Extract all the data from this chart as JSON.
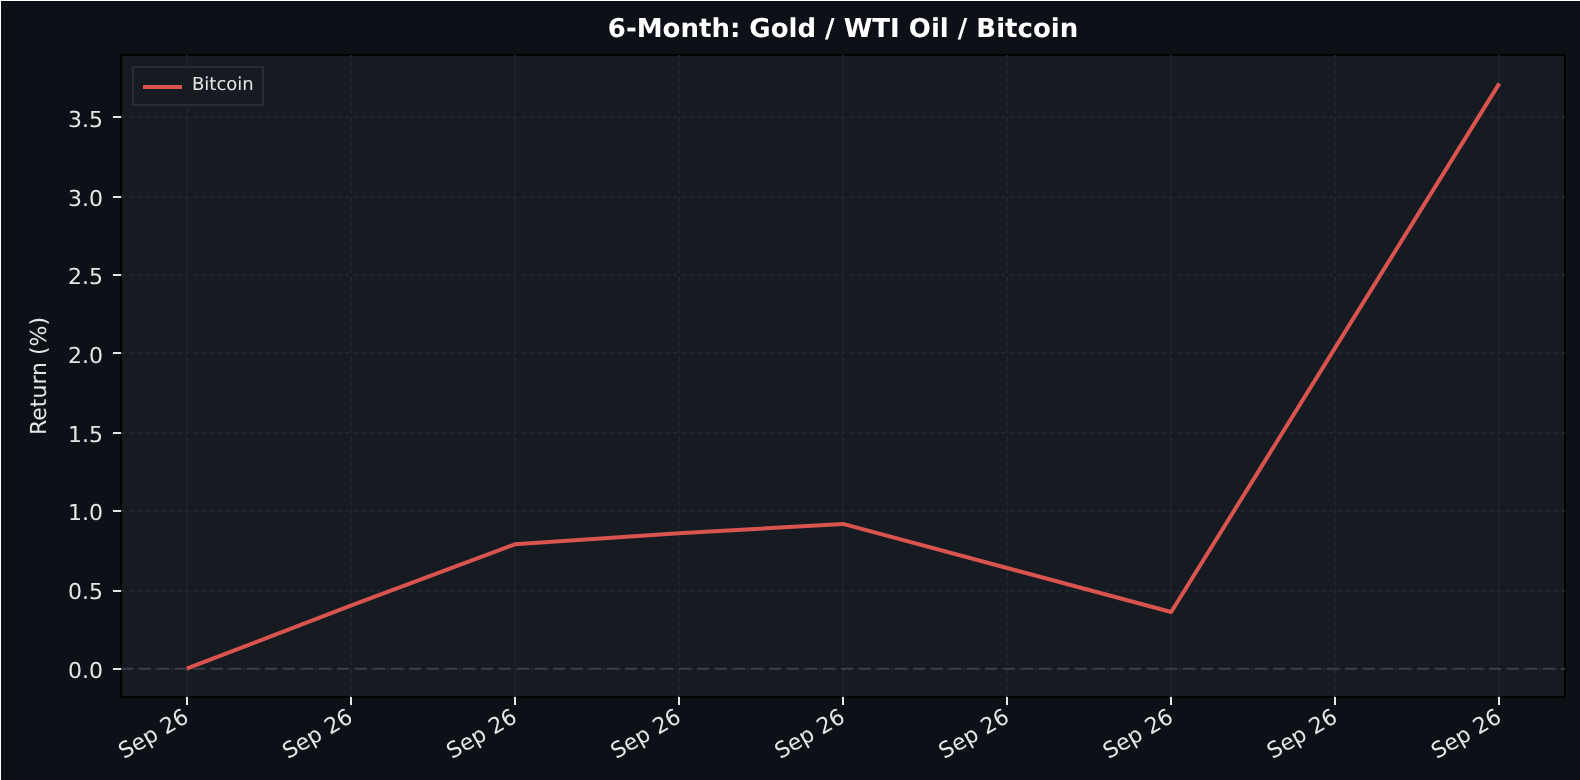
{
  "chart_data": {
    "type": "line",
    "title": "6-Month: Gold / WTI Oil / Bitcoin",
    "ylabel": "Return (%)",
    "categories": [
      "Sep 26",
      "Sep 26",
      "Sep 26",
      "Sep 26",
      "Sep 26",
      "Sep 26",
      "Sep 26",
      "Sep 26",
      "Sep 26"
    ],
    "series": [
      {
        "name": "Bitcoin",
        "color": "#d9534f",
        "values": [
          0.0,
          0.4,
          0.79,
          0.86,
          0.92,
          0.64,
          0.36,
          2.04,
          3.72
        ]
      }
    ],
    "ylim": [
      -0.18,
      3.9
    ],
    "yticks": [
      {
        "value": 0,
        "label": "0.0"
      },
      0.5,
      {
        "value": 1,
        "label": "1.0"
      },
      1.5,
      {
        "value": 2,
        "label": "2.0"
      },
      2.5,
      {
        "value": 3,
        "label": "3.0"
      },
      3.5
    ],
    "ref_lines": [
      {
        "axis": "y",
        "value": 0,
        "label": null,
        "color": "#3a3f47",
        "line_style": "dashed"
      }
    ],
    "grid": true,
    "legend": "top left",
    "marker": "none",
    "line_style": "solid"
  }
}
